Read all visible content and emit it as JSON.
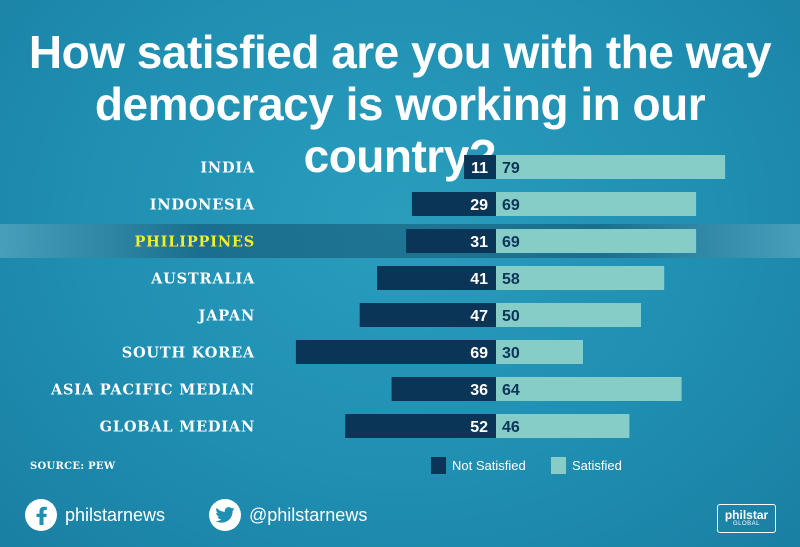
{
  "title": {
    "line1": "How satisfied are you with the way",
    "line2": "democracy is working in our country?"
  },
  "source": "SOURCE: PEW",
  "legend": {
    "not_satisfied": "Not Satisfied",
    "satisfied": "Satisfied"
  },
  "social": {
    "facebook": "philstarnews",
    "twitter": "@philstarnews"
  },
  "logo": {
    "line1": "philstar",
    "line2": "GLOBAL"
  },
  "colors": {
    "not_satisfied": "#0b3557",
    "satisfied": "#86cdc7",
    "highlight_label": "#f2ee2a"
  },
  "chart_data": {
    "type": "bar",
    "orientation": "diverging-horizontal",
    "title": "How satisfied are you with the way democracy is working in our country?",
    "categories": [
      "INDIA",
      "INDONESIA",
      "PHILIPPINES",
      "AUSTRALIA",
      "JAPAN",
      "SOUTH KOREA",
      "ASIA PACIFIC MEDIAN",
      "GLOBAL MEDIAN"
    ],
    "highlighted_category": "PHILIPPINES",
    "series": [
      {
        "name": "Not Satisfied",
        "values": [
          11,
          29,
          31,
          41,
          47,
          69,
          36,
          52
        ],
        "color": "#0b3557"
      },
      {
        "name": "Satisfied",
        "values": [
          79,
          69,
          69,
          58,
          50,
          30,
          64,
          46
        ],
        "color": "#86cdc7"
      }
    ],
    "legend_position": "bottom-right",
    "grid": false
  }
}
